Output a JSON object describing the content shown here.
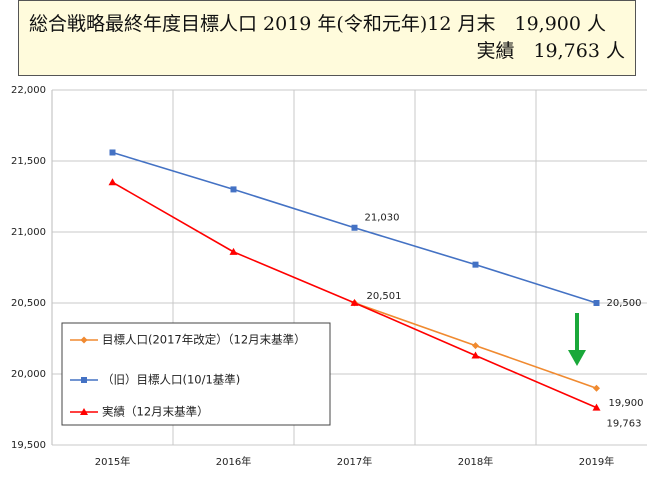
{
  "header": {
    "line1": "総合戦略最終年度目標人口 2019 年(令和元年)12 月末　19,900 人",
    "line2": "実績　19,763 人"
  },
  "chart_data": {
    "type": "line",
    "categories": [
      "2015年",
      "2016年",
      "2017年",
      "2018年",
      "2019年"
    ],
    "series": [
      {
        "name": "目標人口(2017年改定）（12月末基準）",
        "color": "#f08a30",
        "marker": "diamond",
        "values": [
          null,
          null,
          20501,
          20200,
          19900
        ],
        "value_labels": [
          null,
          null,
          null,
          null,
          "19,900"
        ]
      },
      {
        "name": "（旧）目標人口(10/1基準)",
        "color": "#4472c4",
        "marker": "square",
        "values": [
          21560,
          21300,
          21030,
          20770,
          20500
        ],
        "value_labels": [
          null,
          null,
          "21,030",
          null,
          "20,500"
        ]
      },
      {
        "name": "実績（12月末基準）",
        "color": "#ff0000",
        "marker": "triangle",
        "values": [
          21350,
          20860,
          20501,
          20130,
          19763
        ],
        "value_labels": [
          null,
          null,
          "20,501",
          null,
          "19,763"
        ]
      }
    ],
    "ylim": [
      19500,
      22000
    ],
    "yticks": [
      {
        "value": 19500,
        "label": "19,500"
      },
      {
        "value": 20000,
        "label": "20,000"
      },
      {
        "value": 20500,
        "label": "20,500"
      },
      {
        "value": 21000,
        "label": "21,000"
      },
      {
        "value": 21500,
        "label": "21,500"
      },
      {
        "value": 22000,
        "label": "22,000"
      }
    ],
    "grid": true
  }
}
